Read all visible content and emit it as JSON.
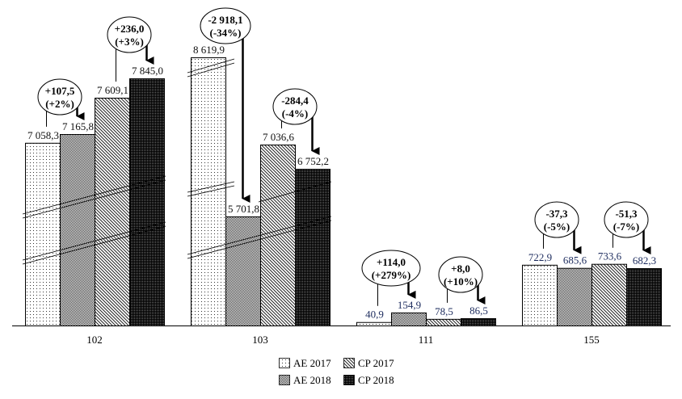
{
  "chart_data": {
    "type": "bar",
    "title": "",
    "xlabel": "",
    "ylabel": "",
    "axis_break": true,
    "categories": [
      "102",
      "103",
      "111",
      "155"
    ],
    "series": [
      {
        "name": "AE 2017",
        "values": [
          "7 058,3",
          "8 619,9",
          "40,9",
          "722,9"
        ],
        "numeric": [
          7058.3,
          8619.9,
          40.9,
          722.9
        ]
      },
      {
        "name": "AE 2018",
        "values": [
          "7 165,8",
          "5 701,8",
          "154,9",
          "685,6"
        ],
        "numeric": [
          7165.8,
          5701.8,
          154.9,
          685.6
        ]
      },
      {
        "name": "CP 2017",
        "values": [
          "7 609,1",
          "7 036,6",
          "78,5",
          "733,6"
        ],
        "numeric": [
          7609.1,
          7036.6,
          78.5,
          733.6
        ]
      },
      {
        "name": "CP 2018",
        "values": [
          "7 845,0",
          "6 752,2",
          "86,5",
          "682,3"
        ],
        "numeric": [
          7845.0,
          6752.2,
          86.5,
          682.3
        ]
      }
    ],
    "annotations": [
      {
        "category": "102",
        "pair": "AE",
        "delta": "+107,5",
        "pct": "(+2%)"
      },
      {
        "category": "102",
        "pair": "CP",
        "delta": "+236,0",
        "pct": "(+3%)"
      },
      {
        "category": "103",
        "pair": "AE",
        "delta": "-2 918,1",
        "pct": "(-34%)"
      },
      {
        "category": "103",
        "pair": "CP",
        "delta": "-284,4",
        "pct": "(-4%)"
      },
      {
        "category": "111",
        "pair": "AE",
        "delta": "+114,0",
        "pct": "(+279%)"
      },
      {
        "category": "111",
        "pair": "CP",
        "delta": "+8,0",
        "pct": "(+10%)"
      },
      {
        "category": "155",
        "pair": "AE",
        "delta": "-37,3",
        "pct": "(-5%)"
      },
      {
        "category": "155",
        "pair": "CP",
        "delta": "-51,3",
        "pct": "(-7%)"
      }
    ],
    "legend": {
      "placement": "bottom-center",
      "entries": [
        "AE 2017",
        "CP 2017",
        "AE 2018",
        "CP 2018"
      ]
    }
  }
}
